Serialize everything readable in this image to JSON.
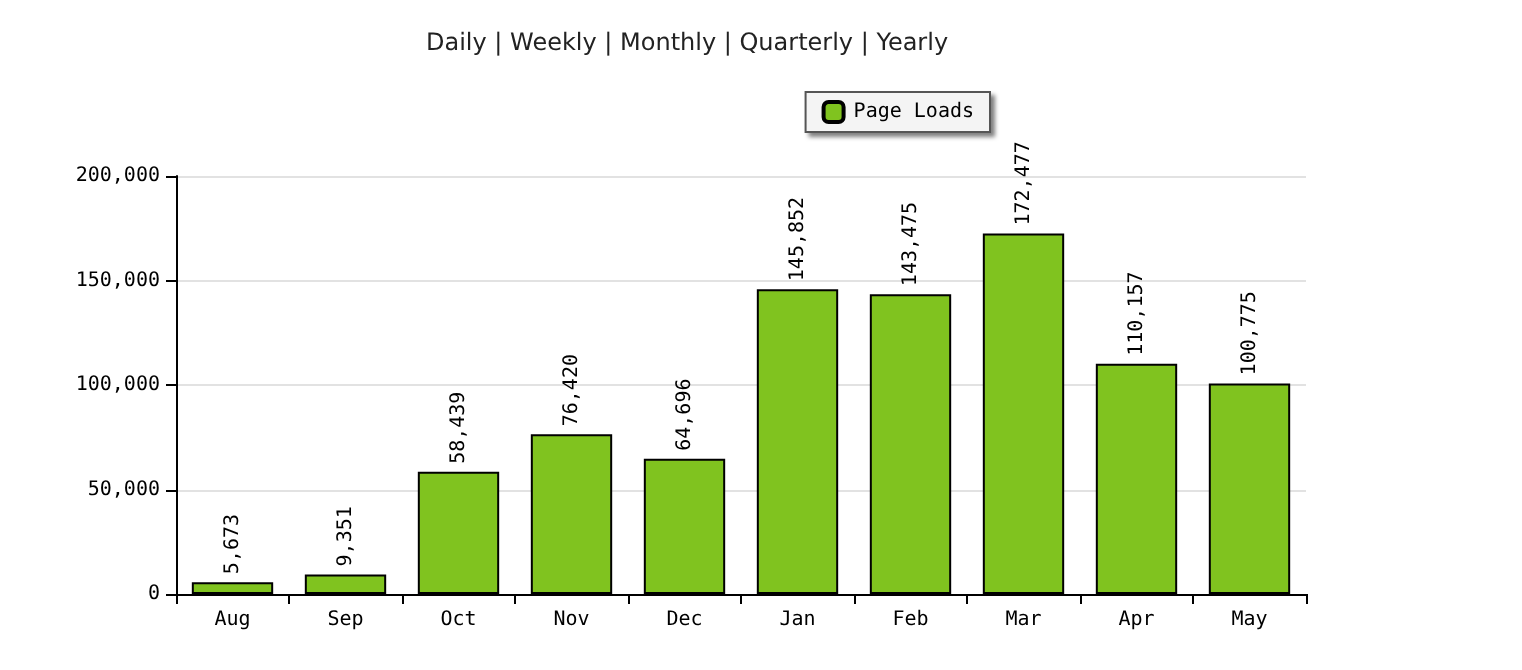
{
  "chart_data": {
    "type": "bar",
    "title": "Daily | Weekly | Monthly | Quarterly | Yearly",
    "categories": [
      "Aug",
      "Sep",
      "Oct",
      "Nov",
      "Dec",
      "Jan",
      "Feb",
      "Mar",
      "Apr",
      "May"
    ],
    "series": [
      {
        "name": "Page Loads",
        "color": "#80c31f",
        "values": [
          5673,
          9351,
          58439,
          76420,
          64696,
          145852,
          143475,
          172477,
          110157,
          100775
        ],
        "value_labels": [
          "5,673",
          "9,351",
          "58,439",
          "76,420",
          "64,696",
          "145,852",
          "143,475",
          "172,477",
          "110,157",
          "100,775"
        ]
      }
    ],
    "ylim": [
      0,
      200000
    ],
    "yticks": [
      0,
      {
        "value": 50000,
        "label": "50,000"
      },
      {
        "value": 100000,
        "label": "100,000"
      },
      {
        "value": 150000,
        "label": "150,000"
      },
      {
        "value": 200000,
        "label": "200,000"
      }
    ],
    "grid": "y",
    "legend": "top right"
  }
}
